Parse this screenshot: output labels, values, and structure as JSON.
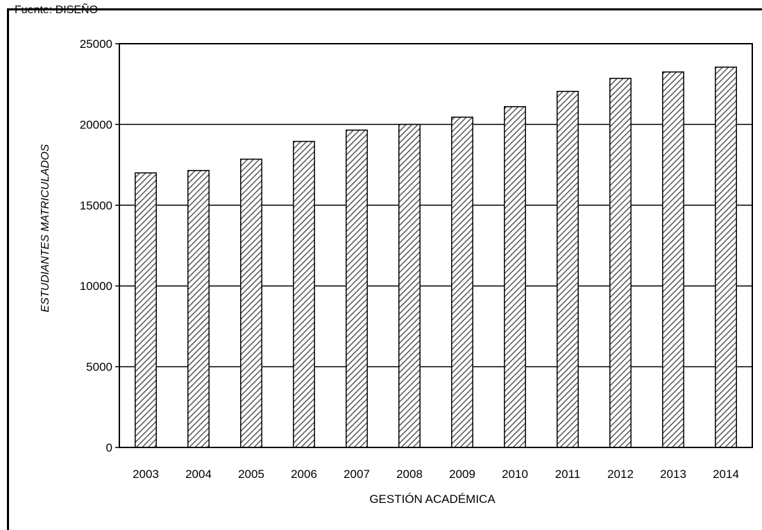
{
  "header_fragment": "Fuente: DISEÑO",
  "chart_data": {
    "type": "bar",
    "title": "",
    "xlabel": "GESTIÓN ACADÉMICA",
    "ylabel": "ESTUDIANTES MATRICULADOS",
    "categories": [
      "2003",
      "2004",
      "2005",
      "2006",
      "2007",
      "2008",
      "2009",
      "2010",
      "2011",
      "2012",
      "2013",
      "2014"
    ],
    "values": [
      17000,
      17150,
      17850,
      18950,
      19650,
      20000,
      20450,
      21100,
      22050,
      22850,
      23250,
      23550
    ],
    "ylim": [
      0,
      25000
    ],
    "yticks": [
      0,
      5000,
      10000,
      15000,
      20000,
      25000
    ],
    "grid": true,
    "bar_fill": "diagonal-hatch",
    "colors": {
      "bar_stroke": "#000000",
      "hatch": "#555555",
      "background": "#ffffff"
    }
  }
}
